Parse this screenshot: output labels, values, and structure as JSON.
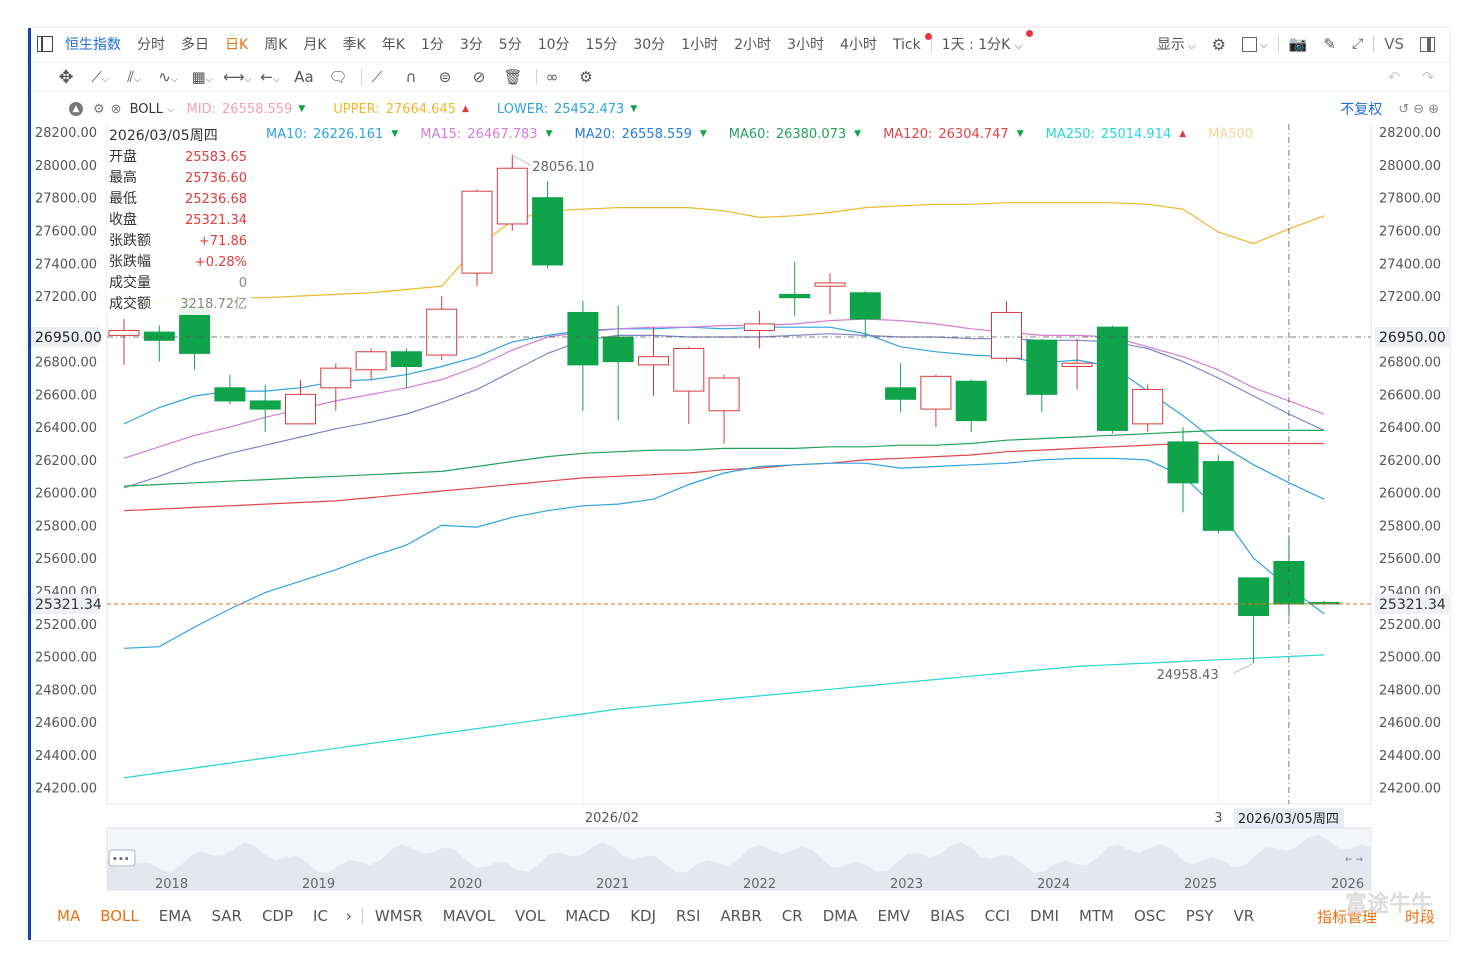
{
  "toolbar": {
    "title": "恒生指数",
    "timeframes": [
      "分时",
      "多日",
      "日K",
      "周K",
      "月K",
      "季K",
      "年K",
      "1分",
      "3分",
      "5分",
      "10分",
      "15分",
      "30分",
      "1小时",
      "2小时",
      "3小时",
      "4小时",
      "Tick"
    ],
    "active": "日K",
    "multi_label": "1天 : 1分K",
    "display_label": "显示",
    "vs_label": "VS"
  },
  "indicator_row": {
    "boll_label": "BOLL",
    "mid_label": "MID:",
    "mid_value": "26558.559",
    "upper_label": "UPPER:",
    "upper_value": "27664.645",
    "lower_label": "LOWER:",
    "lower_value": "25452.473",
    "fuquan": "不复权"
  },
  "ma_row": [
    {
      "label": "MA10:",
      "value": "26226.161",
      "color": "#2ea3e0",
      "dir": "down"
    },
    {
      "label": "MA15:",
      "value": "26467.783",
      "color": "#d77ad8",
      "dir": "down"
    },
    {
      "label": "MA20:",
      "value": "26558.559",
      "color": "#2a7de1",
      "dir": "down"
    },
    {
      "label": "MA60:",
      "value": "26380.073",
      "color": "#21a35a",
      "dir": "down"
    },
    {
      "label": "MA120:",
      "value": "26304.747",
      "color": "#e04646",
      "dir": "down"
    },
    {
      "label": "MA250:",
      "value": "25014.914",
      "color": "#27d6d6",
      "dir": "up"
    },
    {
      "label": "MA500",
      "value": "",
      "color": "#f3d79a",
      "dir": ""
    }
  ],
  "info_panel": {
    "date": "2026/03/05周四",
    "rows": [
      {
        "label": "开盘",
        "value": "25583.65",
        "color": "#e03c3c"
      },
      {
        "label": "最高",
        "value": "25736.60",
        "color": "#e03c3c"
      },
      {
        "label": "最低",
        "value": "25236.68",
        "color": "#e03c3c"
      },
      {
        "label": "收盘",
        "value": "25321.34",
        "color": "#e03c3c"
      },
      {
        "label": "张跌额",
        "value": "+71.86",
        "color": "#e03c3c"
      },
      {
        "label": "张跌幅",
        "value": "+0.28%",
        "color": "#e03c3c"
      },
      {
        "label": "成交量",
        "value": "0",
        "color": "#888888"
      },
      {
        "label": "成交额",
        "value": "3218.72亿",
        "color": "#888888"
      }
    ]
  },
  "chart_data": {
    "type": "candlestick",
    "ylim": [
      24100,
      28250
    ],
    "yticks": [
      "28200.00",
      "28000.00",
      "27800.00",
      "27600.00",
      "27400.00",
      "27200.00",
      "26800.00",
      "26600.00",
      "26400.00",
      "26200.00",
      "26000.00",
      "25800.00",
      "25600.00",
      "25400.00",
      "25200.00",
      "25000.00",
      "24800.00",
      "24600.00",
      "24400.00",
      "24200.00"
    ],
    "ytick_values": [
      28200,
      28000,
      27800,
      27600,
      27400,
      27200,
      26800,
      26600,
      26400,
      26200,
      26000,
      25800,
      25600,
      25400,
      25200,
      25000,
      24800,
      24600,
      24400,
      24200
    ],
    "crosshair_price": "26950.00",
    "crosshair_value": 26950,
    "last_price": "25321.34",
    "last_value": 25321.34,
    "x_labels": [
      "2026/02",
      "3"
    ],
    "x_label_index": [
      13,
      31
    ],
    "cursor_label": "2026/03/05周四",
    "cursor_index": 33,
    "high_annotation": "28056.10",
    "high_index": 11,
    "low_annotation": "24958.43",
    "low_index": 32,
    "candles": [
      {
        "o": 26960,
        "h": 27060,
        "l": 26780,
        "c": 26990
      },
      {
        "o": 26980,
        "h": 27020,
        "l": 26800,
        "c": 26930
      },
      {
        "o": 27130,
        "h": 27220,
        "l": 26750,
        "c": 26850
      },
      {
        "o": 26640,
        "h": 26720,
        "l": 26540,
        "c": 26560
      },
      {
        "o": 26560,
        "h": 26660,
        "l": 26370,
        "c": 26510
      },
      {
        "o": 26420,
        "h": 26690,
        "l": 26420,
        "c": 26600
      },
      {
        "o": 26640,
        "h": 26790,
        "l": 26500,
        "c": 26760
      },
      {
        "o": 26750,
        "h": 26880,
        "l": 26690,
        "c": 26860
      },
      {
        "o": 26860,
        "h": 26880,
        "l": 26640,
        "c": 26770
      },
      {
        "o": 26840,
        "h": 27200,
        "l": 26810,
        "c": 27120
      },
      {
        "o": 27340,
        "h": 27850,
        "l": 27260,
        "c": 27840
      },
      {
        "o": 27640,
        "h": 28060,
        "l": 27600,
        "c": 27980
      },
      {
        "o": 27800,
        "h": 27900,
        "l": 27370,
        "c": 27390
      },
      {
        "o": 27100,
        "h": 27170,
        "l": 26500,
        "c": 26780
      },
      {
        "o": 26950,
        "h": 27140,
        "l": 26440,
        "c": 26800
      },
      {
        "o": 26780,
        "h": 27010,
        "l": 26590,
        "c": 26830
      },
      {
        "o": 26620,
        "h": 26890,
        "l": 26420,
        "c": 26880
      },
      {
        "o": 26500,
        "h": 26720,
        "l": 26300,
        "c": 26700
      },
      {
        "o": 26990,
        "h": 27110,
        "l": 26880,
        "c": 27030
      },
      {
        "o": 27210,
        "h": 27410,
        "l": 27080,
        "c": 27190
      },
      {
        "o": 27260,
        "h": 27340,
        "l": 27090,
        "c": 27280
      },
      {
        "o": 27220,
        "h": 27230,
        "l": 26950,
        "c": 27060
      },
      {
        "o": 26640,
        "h": 26790,
        "l": 26490,
        "c": 26570
      },
      {
        "o": 26510,
        "h": 26720,
        "l": 26400,
        "c": 26710
      },
      {
        "o": 26680,
        "h": 26690,
        "l": 26370,
        "c": 26440
      },
      {
        "o": 26820,
        "h": 27170,
        "l": 26800,
        "c": 27100
      },
      {
        "o": 26930,
        "h": 26940,
        "l": 26490,
        "c": 26600
      },
      {
        "o": 26770,
        "h": 26940,
        "l": 26630,
        "c": 26790
      },
      {
        "o": 27010,
        "h": 27020,
        "l": 26360,
        "c": 26380
      },
      {
        "o": 26420,
        "h": 26660,
        "l": 26370,
        "c": 26630
      },
      {
        "o": 26310,
        "h": 26400,
        "l": 25880,
        "c": 26060
      },
      {
        "o": 26190,
        "h": 26230,
        "l": 25750,
        "c": 25770
      },
      {
        "o": 25480,
        "h": 25480,
        "l": 24960,
        "c": 25250
      },
      {
        "o": 25580,
        "h": 25740,
        "l": 25240,
        "c": 25320
      },
      {
        "o": 25330,
        "h": 25340,
        "l": 25320,
        "c": 25321
      }
    ],
    "series": [
      {
        "color": "#f0b72a",
        "values": [
          27130,
          27170,
          27180,
          27190,
          27190,
          27200,
          27210,
          27220,
          27240,
          27260,
          27500,
          27660,
          27720,
          27730,
          27740,
          27740,
          27740,
          27720,
          27680,
          27690,
          27710,
          27740,
          27750,
          27760,
          27760,
          27770,
          27770,
          27770,
          27770,
          27760,
          27730,
          27590,
          27520,
          27610,
          27690
        ]
      },
      {
        "color": "#2ea3e0",
        "values": [
          26420,
          26520,
          26590,
          26620,
          26620,
          26640,
          26680,
          26690,
          26720,
          26770,
          26830,
          26920,
          26960,
          26990,
          27000,
          27000,
          27010,
          27000,
          27010,
          27010,
          27010,
          26970,
          26890,
          26860,
          26840,
          26830,
          26790,
          26810,
          26770,
          26620,
          26470,
          26300,
          26170,
          26060,
          25960
        ]
      },
      {
        "color": "#d77ad8",
        "values": [
          26210,
          26280,
          26350,
          26400,
          26460,
          26510,
          26560,
          26600,
          26640,
          26690,
          26770,
          26870,
          26950,
          26980,
          27000,
          27010,
          27010,
          27020,
          27020,
          27030,
          27050,
          27060,
          27050,
          27030,
          27000,
          26980,
          26960,
          26960,
          26950,
          26890,
          26830,
          26750,
          26640,
          26560,
          26480
        ]
      },
      {
        "color": "#7c86c8",
        "values": [
          26030,
          26100,
          26180,
          26240,
          26290,
          26340,
          26390,
          26430,
          26480,
          26550,
          26630,
          26740,
          26850,
          26930,
          26960,
          26960,
          26950,
          26950,
          26950,
          26960,
          26970,
          26960,
          26950,
          26950,
          26940,
          26940,
          26930,
          26930,
          26920,
          26880,
          26800,
          26700,
          26590,
          26480,
          26380
        ]
      },
      {
        "color": "#21a35a",
        "values": [
          26040,
          26050,
          26060,
          26070,
          26080,
          26090,
          26100,
          26110,
          26120,
          26130,
          26160,
          26190,
          26220,
          26240,
          26250,
          26260,
          26260,
          26270,
          26270,
          26270,
          26280,
          26280,
          26290,
          26290,
          26300,
          26320,
          26330,
          26340,
          26350,
          26360,
          26370,
          26380,
          26380,
          26380,
          26380
        ]
      },
      {
        "color": "#e04646",
        "values": [
          25890,
          25900,
          25910,
          25920,
          25930,
          25940,
          25950,
          25970,
          25990,
          26010,
          26030,
          26050,
          26070,
          26090,
          26100,
          26110,
          26120,
          26140,
          26150,
          26170,
          26180,
          26200,
          26210,
          26220,
          26230,
          26250,
          26260,
          26270,
          26280,
          26290,
          26300,
          26300,
          26300,
          26300,
          26300
        ]
      },
      {
        "color": "#2ea3e0",
        "values": [
          25050,
          25060,
          25180,
          25290,
          25390,
          25460,
          25530,
          25610,
          25680,
          25800,
          25790,
          25850,
          25890,
          25920,
          25930,
          25960,
          26050,
          26120,
          26160,
          26170,
          26180,
          26180,
          26150,
          26160,
          26170,
          26180,
          26200,
          26210,
          26210,
          26200,
          26100,
          25900,
          25600,
          25420,
          25260
        ]
      },
      {
        "color": "#27d6d6",
        "values": [
          24260,
          24290,
          24320,
          24350,
          24380,
          24410,
          24440,
          24470,
          24500,
          24530,
          24560,
          24590,
          24620,
          24650,
          24680,
          24700,
          24720,
          24740,
          24760,
          24780,
          24800,
          24820,
          24840,
          24860,
          24880,
          24900,
          24920,
          24940,
          24950,
          24960,
          24970,
          24980,
          24990,
          25000,
          25010
        ]
      }
    ]
  },
  "overview": {
    "years": [
      "2018",
      "2019",
      "2020",
      "2021",
      "2022",
      "2023",
      "2024",
      "2025",
      "2026"
    ],
    "dots": "•••",
    "arrows": "← →"
  },
  "indicator_bar": {
    "items": [
      "MA",
      "BOLL",
      "EMA",
      "SAR",
      "CDP",
      "IC"
    ],
    "items2": [
      "WMSR",
      "MAVOL",
      "VOL",
      "MACD",
      "KDJ",
      "RSI",
      "ARBR",
      "CR",
      "DMA",
      "EMV",
      "BIAS",
      "CCI",
      "DMI",
      "MTM",
      "OSC",
      "PSY",
      "VR"
    ],
    "manage": "指标管理",
    "period": "时段",
    "active": [
      "MA",
      "BOLL"
    ]
  },
  "watermark": "富途牛牛",
  "colors": {
    "up": "#d63b3b",
    "down": "#0fa34a",
    "accent": "#e8700e",
    "brand": "#1f6fd8"
  }
}
